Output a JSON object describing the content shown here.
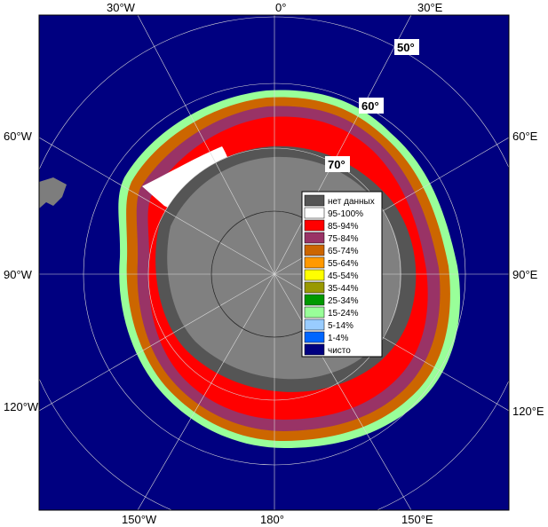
{
  "map": {
    "projection": "south-polar-stereographic",
    "longitude_labels": {
      "top": [
        "30°W",
        "0°",
        "30°E"
      ],
      "left": [
        "60°W",
        "90°W",
        "120°W"
      ],
      "right": [
        "60°E",
        "90°E",
        "120°E"
      ],
      "bottom": [
        "150°W",
        "180°",
        "150°E"
      ]
    },
    "latitude_labels": [
      "50°",
      "60°",
      "70°"
    ],
    "colors": {
      "ocean": "#000080",
      "land": "#808080",
      "no_data": "#555555",
      "frame": "#ffffff"
    }
  },
  "legend": {
    "items": [
      {
        "label": "нет данных",
        "color": "#555555"
      },
      {
        "label": "95-100%",
        "color": "#ffffff"
      },
      {
        "label": "85-94%",
        "color": "#ff0000"
      },
      {
        "label": "75-84%",
        "color": "#993366"
      },
      {
        "label": "65-74%",
        "color": "#cc6600"
      },
      {
        "label": "55-64%",
        "color": "#ff9900"
      },
      {
        "label": "45-54%",
        "color": "#ffff00"
      },
      {
        "label": "35-44%",
        "color": "#999900"
      },
      {
        "label": "25-34%",
        "color": "#009900"
      },
      {
        "label": "15-24%",
        "color": "#99ff99"
      },
      {
        "label": "5-14%",
        "color": "#99ccff"
      },
      {
        "label": "1-4%",
        "color": "#0066ff"
      },
      {
        "label": "чисто",
        "color": "#000080"
      }
    ]
  }
}
